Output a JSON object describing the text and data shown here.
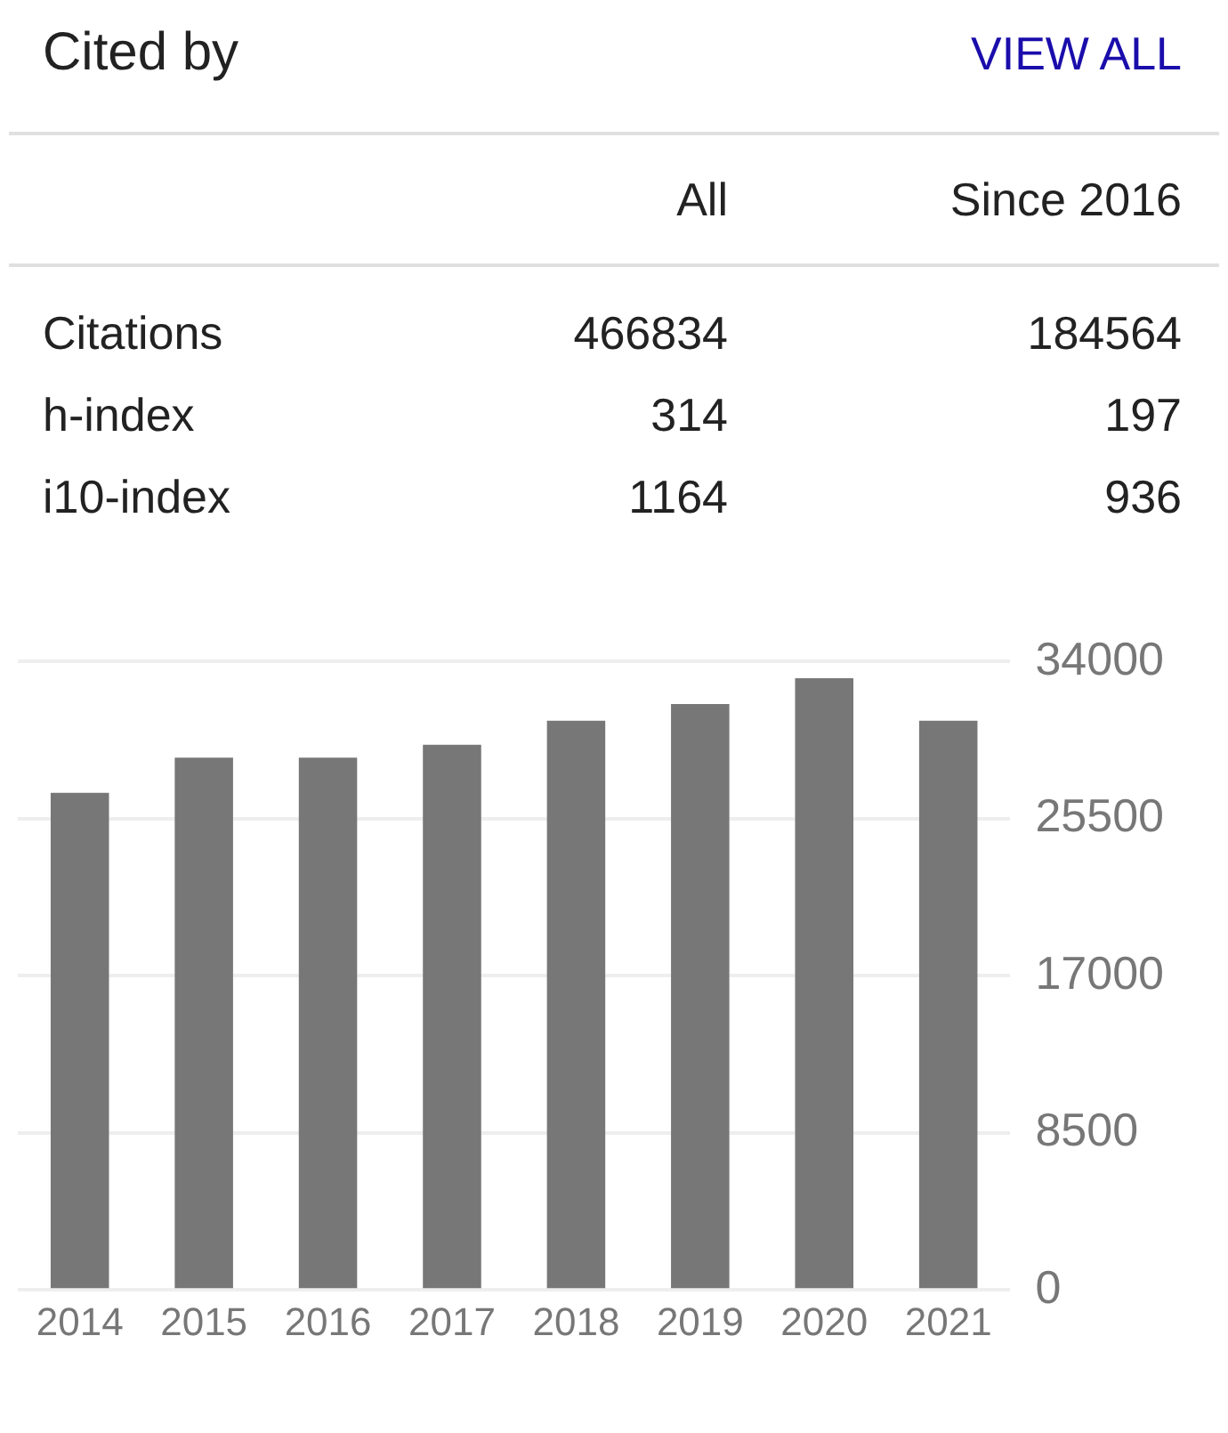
{
  "chart_data": [
    {
      "type": "other",
      "title": "Cited by",
      "annotations": [
        "VIEW ALL",
        "All",
        "Since 2016",
        "Citations",
        "466834",
        "184564",
        "h-index",
        "314",
        "197",
        "i10-index",
        "1164",
        "936"
      ]
    },
    {
      "type": "bar",
      "categories": [
        "2014",
        "2015",
        "2016",
        "2017",
        "2018",
        "2019",
        "2020",
        "2021"
      ],
      "values": [
        26900,
        28800,
        28800,
        29500,
        30800,
        31700,
        33100,
        30800
      ],
      "color": "#777777",
      "ylim": [
        0,
        34000
      ],
      "yticks": [
        0,
        8500,
        17000,
        25500,
        34000
      ],
      "grid": "y",
      "legend": false
    }
  ]
}
